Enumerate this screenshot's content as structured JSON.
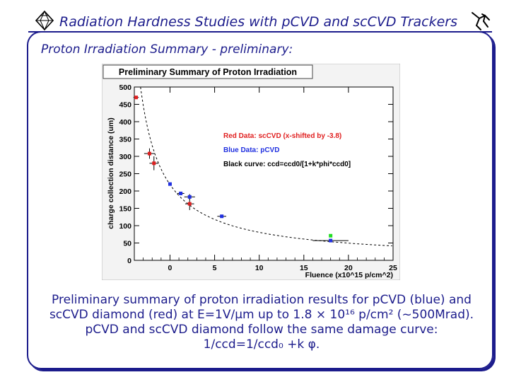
{
  "slide": {
    "title": "Radiation Hardness Studies with pCVD and scCVD Trackers",
    "subtitle": "Proton Irradiation Summary - preliminary:",
    "caption_lines": [
      "Preliminary summary of proton irradiation results for pCVD (blue) and",
      "scCVD diamond (red) at E=1V/μm  up to 1.8 × 10¹⁶ p/cm² (~500Mrad).",
      "pCVD and scCVD diamond follow the same damage curve:",
      "1/ccd=1/ccd₀ +k φ."
    ],
    "colors": {
      "text": "#1c1c8c",
      "frame": "#1c1c8c"
    },
    "icons": {
      "left": "diamond-logo-icon",
      "right": "stick-figure-logo-icon"
    }
  },
  "chart_data": {
    "type": "scatter",
    "title": "Preliminary Summary of Proton Irradiation",
    "xlabel": "Fluence (x10^15 p/cm^2)",
    "ylabel": "charge collection distance (um)",
    "xlim": [
      -4,
      25
    ],
    "ylim": [
      0,
      500
    ],
    "xticks": [
      0,
      5,
      10,
      15,
      20,
      25
    ],
    "yticks": [
      0,
      50,
      100,
      150,
      200,
      250,
      300,
      350,
      400,
      450,
      500
    ],
    "grid": false,
    "legend_placement": "top-right",
    "legend": [
      {
        "text": "Red Data: scCVD  (x-shifted by -3.8)",
        "color": "#e02020"
      },
      {
        "text": "Blue Data: pCVD",
        "color": "#2030e0"
      },
      {
        "text": "Black curve: ccd=ccd0/[1+k*phi*ccd0]",
        "color": "#000000"
      }
    ],
    "series": [
      {
        "color": "#e02020",
        "points": [
          {
            "x": -3.8,
            "y": 470,
            "xerr": 0.3,
            "yerr": 0
          },
          {
            "x": -2.3,
            "y": 308,
            "xerr": 0.6,
            "yerr": 15
          },
          {
            "x": -1.8,
            "y": 280,
            "xerr": 0.5,
            "yerr": 20
          },
          {
            "x": 2.2,
            "y": 163,
            "xerr": 0.5,
            "yerr": 18
          }
        ]
      },
      {
        "color": "#2030e0",
        "points": [
          {
            "x": 0,
            "y": 220,
            "xerr": 0,
            "yerr": 0
          },
          {
            "x": 1.2,
            "y": 193,
            "xerr": 0.4,
            "yerr": 0
          },
          {
            "x": 2.2,
            "y": 183,
            "xerr": 0.6,
            "yerr": 8
          },
          {
            "x": 5.8,
            "y": 127,
            "xerr": 0.5,
            "yerr": 0
          },
          {
            "x": 18,
            "y": 57,
            "xerr": 2.0,
            "yerr": 0
          }
        ]
      },
      {
        "color": "#22dd22",
        "points": [
          {
            "x": 18,
            "y": 71,
            "xerr": 0,
            "yerr": 0
          }
        ]
      }
    ],
    "curve": {
      "color": "#000000",
      "style": "dashed",
      "ccd0": 620,
      "k": 0.00078,
      "x0": -3.8
    }
  }
}
